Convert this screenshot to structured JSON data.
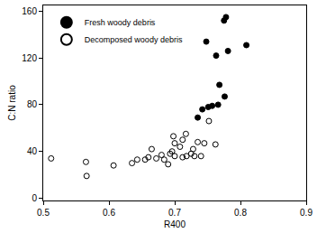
{
  "chart_data": {
    "type": "scatter",
    "x_label": "R400",
    "y_label": "C:N ratio",
    "xlim": [
      0.5,
      0.9
    ],
    "xticks": [
      0.5,
      0.6,
      0.7,
      0.8,
      0.9
    ],
    "ylim": [
      -2,
      165
    ],
    "yticks": [
      0,
      40,
      80,
      120,
      160
    ],
    "grid": false,
    "legend": "upper left",
    "series": [
      {
        "name": "Fresh woody debris",
        "color": "#000000",
        "marker": "filled",
        "x": [
          0.778,
          0.775,
          0.748,
          0.809,
          0.781,
          0.763,
          0.768,
          0.776,
          0.766,
          0.757,
          0.751,
          0.742,
          0.735
        ],
        "values": [
          155,
          152,
          134,
          131,
          126,
          122,
          97,
          87,
          80,
          79,
          78,
          76,
          69
        ]
      },
      {
        "name": "Decomposed woody debris",
        "color": "#000000",
        "marker": "open",
        "x": [
          0.512,
          0.565,
          0.566,
          0.607,
          0.635,
          0.643,
          0.655,
          0.66,
          0.665,
          0.672,
          0.68,
          0.684,
          0.69,
          0.693,
          0.696,
          0.698,
          0.7,
          0.7,
          0.708,
          0.712,
          0.712,
          0.717,
          0.718,
          0.725,
          0.728,
          0.73,
          0.735,
          0.74,
          0.745,
          0.752,
          0.762
        ],
        "values": [
          34,
          31,
          19,
          28,
          30,
          33,
          33,
          35,
          42,
          34,
          37,
          33,
          29,
          38,
          40,
          53,
          47,
          36,
          44,
          50,
          35,
          55,
          36,
          38,
          42,
          36,
          48,
          36,
          47,
          66,
          46
        ]
      }
    ]
  }
}
